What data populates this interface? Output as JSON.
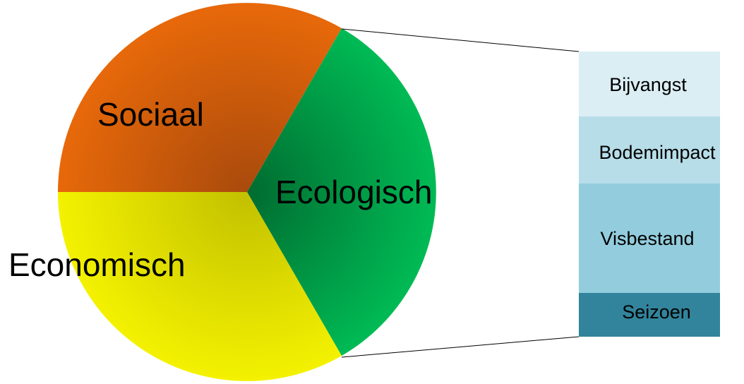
{
  "pie": {
    "slices": [
      "Sociaal",
      "Ecologisch",
      "Economisch"
    ]
  },
  "bar": {
    "segments": [
      "Bijvangst",
      "Bodemimpact",
      "Visbestand",
      "Seizoen"
    ]
  }
}
